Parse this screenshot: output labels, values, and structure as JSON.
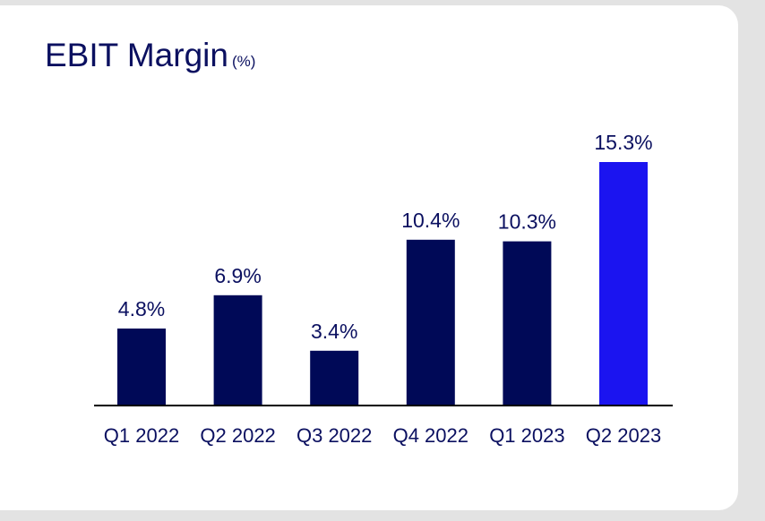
{
  "chart_data": {
    "type": "bar",
    "title": "EBIT Margin",
    "title_unit": "(%)",
    "categories": [
      "Q1 2022",
      "Q2 2022",
      "Q3 2022",
      "Q4 2022",
      "Q1 2023",
      "Q2 2023"
    ],
    "values": [
      4.8,
      6.9,
      3.4,
      10.4,
      10.3,
      15.3
    ],
    "data_labels": [
      "4.8%",
      "6.9%",
      "3.4%",
      "10.4%",
      "10.3%",
      "15.3%"
    ],
    "ylim": [
      0,
      15.3
    ],
    "grid": false,
    "legend": "none",
    "colors": {
      "bar": "#000957",
      "highlight_bar": "#1b14f0",
      "axis": "#000000",
      "text": "#0b1060"
    },
    "highlight_index": 5
  }
}
